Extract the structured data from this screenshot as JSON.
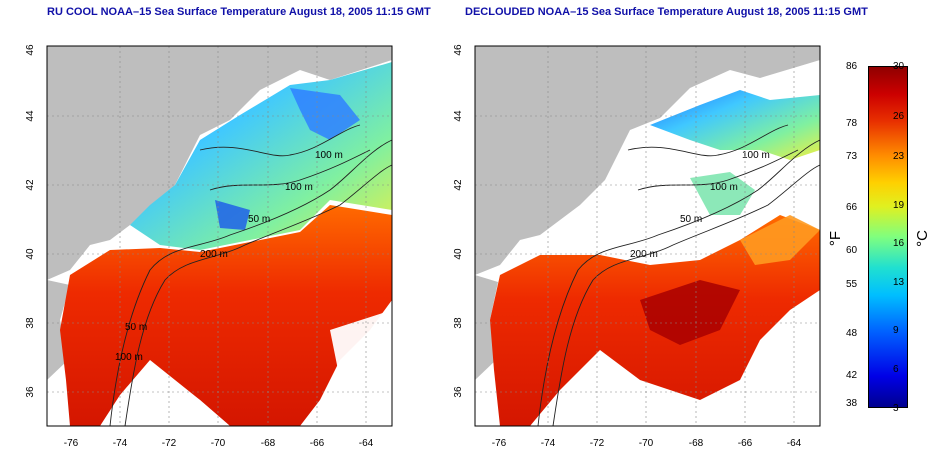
{
  "titles": {
    "left": "RU COOL NOAA–15 Sea Surface Temperature August 18, 2005 11:15 GMT",
    "right": "DECLOUDED NOAA–15 Sea Surface Temperature August 18, 2005 11:15 GMT"
  },
  "axes": {
    "lat_ticks": [
      "46",
      "44",
      "42",
      "40",
      "38",
      "36"
    ],
    "lon_ticks": [
      "-76",
      "-74",
      "-72",
      "-70",
      "-68",
      "-66",
      "-64"
    ]
  },
  "contours": {
    "left": [
      "100 m",
      "100 m",
      "50 m",
      "200 m",
      "50 m",
      "100 m"
    ],
    "right": [
      "100 m",
      "100 m",
      "50 m",
      "200 m"
    ]
  },
  "colorbar": {
    "fahrenheit": [
      "86",
      "78",
      "73",
      "66",
      "60",
      "55",
      "48",
      "42",
      "38"
    ],
    "celsius": [
      "30",
      "26",
      "23",
      "19",
      "16",
      "13",
      "9",
      "6",
      "3"
    ],
    "unit_f": "°F",
    "unit_c": "°C"
  }
}
